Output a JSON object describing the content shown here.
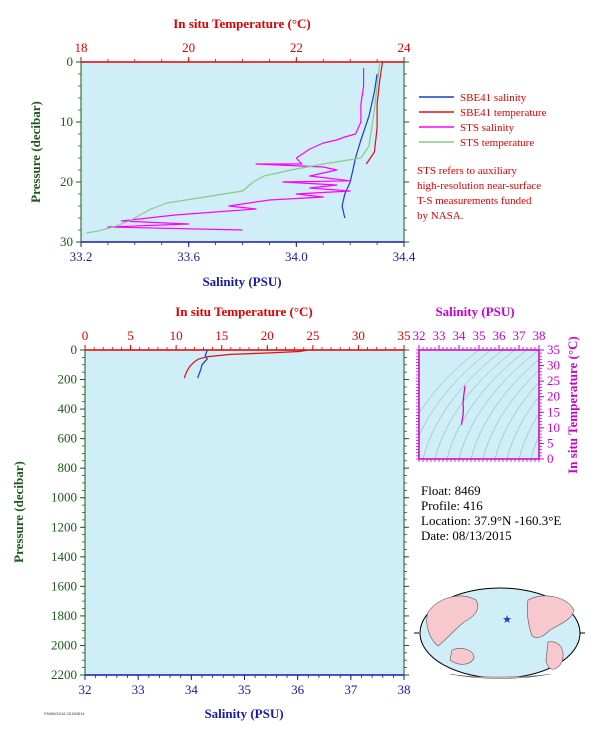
{
  "colors": {
    "plot_bg": "#cfeef7",
    "salinity_axis": "#1a1aa8",
    "temperature_axis": "#e00000",
    "pressure_axis": "#1d5a1d",
    "sbe_salinity": "#1a3cc8",
    "sbe_temperature": "#dd1111",
    "sts_salinity": "#ff00ff",
    "sts_temperature": "#88cc88",
    "ts_axis": "#cc00cc"
  },
  "legend": [
    {
      "label": "SBE41 salinity",
      "color": "#1a3cc8"
    },
    {
      "label": "SBE41 temperature",
      "color": "#dd1111"
    },
    {
      "label": "STS salinity",
      "color": "#ff00ff"
    },
    {
      "label": "STS temperature",
      "color": "#88cc88"
    }
  ],
  "note_lines": [
    "STS refers to auxiliary",
    "high-resolution near-surface",
    "T-S measurements funded",
    "by NASA."
  ],
  "info": {
    "float": "Float:  8469",
    "profile": "Profile:  416",
    "location": "Location:  37.9°N  -160.3°E",
    "date": "Date:  08/13/2015"
  },
  "footer_code": "F8469/Z416 20150814",
  "chart_data": [
    {
      "type": "line",
      "name": "near-surface profile",
      "top_axis_title": "In situ Temperature (°C)",
      "bottom_axis_title": "Salinity (PSU)",
      "left_axis_title": "Pressure (decibar)",
      "temperature_range": [
        18,
        24
      ],
      "temperature_ticks": [
        "18",
        "20",
        "22",
        "24"
      ],
      "salinity_range": [
        33.2,
        34.4
      ],
      "salinity_ticks": [
        "33.2",
        "33.6",
        "34.0",
        "34.4"
      ],
      "pressure_range": [
        0,
        30
      ],
      "pressure_ticks": [
        "0",
        "10",
        "20",
        "30"
      ],
      "series": [
        {
          "name": "SBE41 salinity",
          "x_axis": "salinity",
          "points": [
            [
              34.3,
              2
            ],
            [
              34.29,
              5
            ],
            [
              34.27,
              9
            ],
            [
              34.24,
              13
            ],
            [
              34.22,
              16
            ],
            [
              34.21,
              18
            ],
            [
              34.2,
              20
            ],
            [
              34.18,
              22
            ],
            [
              34.17,
              24
            ],
            [
              34.18,
              26
            ]
          ]
        },
        {
          "name": "SBE41 temperature",
          "x_axis": "temperature",
          "points": [
            [
              23.6,
              0
            ],
            [
              23.55,
              3
            ],
            [
              23.5,
              7
            ],
            [
              23.5,
              11
            ],
            [
              23.45,
              15
            ],
            [
              23.3,
              17
            ]
          ]
        },
        {
          "name": "STS salinity",
          "x_axis": "salinity",
          "points": [
            [
              34.25,
              1
            ],
            [
              34.25,
              4
            ],
            [
              34.24,
              7
            ],
            [
              34.24,
              10
            ],
            [
              34.23,
              11
            ],
            [
              34.22,
              12
            ],
            [
              34.18,
              12.5
            ],
            [
              34.15,
              13
            ],
            [
              34.1,
              13.5
            ],
            [
              34.05,
              14.5
            ],
            [
              34.0,
              16
            ],
            [
              34.02,
              17
            ],
            [
              33.85,
              17
            ],
            [
              34.1,
              17.5
            ],
            [
              34.15,
              18
            ],
            [
              34.05,
              19
            ],
            [
              34.2,
              19.8
            ],
            [
              33.95,
              20
            ],
            [
              34.15,
              20.5
            ],
            [
              34.05,
              21
            ],
            [
              34.2,
              21.5
            ],
            [
              34.0,
              22
            ],
            [
              34.1,
              22.5
            ],
            [
              33.9,
              23
            ],
            [
              33.75,
              24
            ],
            [
              33.85,
              24.5
            ],
            [
              33.7,
              25
            ],
            [
              33.55,
              25.5
            ],
            [
              33.35,
              26.5
            ],
            [
              33.6,
              27
            ],
            [
              33.3,
              27.5
            ],
            [
              33.8,
              28
            ]
          ]
        },
        {
          "name": "STS temperature",
          "x_axis": "temperature",
          "points": [
            [
              23.55,
              0
            ],
            [
              23.5,
              4
            ],
            [
              23.45,
              8
            ],
            [
              23.4,
              11
            ],
            [
              23.35,
              14
            ],
            [
              23.2,
              16
            ],
            [
              22.5,
              17
            ],
            [
              21.9,
              18
            ],
            [
              21.4,
              19
            ],
            [
              21.2,
              20
            ],
            [
              21.0,
              21.5
            ],
            [
              20.3,
              22.5
            ],
            [
              19.6,
              23.5
            ],
            [
              19.3,
              24.5
            ],
            [
              19.1,
              25.5
            ],
            [
              18.9,
              26.5
            ],
            [
              18.6,
              27.5
            ],
            [
              18.3,
              28.2
            ],
            [
              18.1,
              28.5
            ]
          ]
        }
      ]
    },
    {
      "type": "line",
      "name": "full profile",
      "top_axis_title": "In situ Temperature (°C)",
      "bottom_axis_title": "Salinity (PSU)",
      "left_axis_title": "Pressure (decibar)",
      "temperature_range": [
        0,
        35
      ],
      "temperature_ticks": [
        "0",
        "5",
        "10",
        "15",
        "20",
        "25",
        "30",
        "35"
      ],
      "salinity_range": [
        32,
        38
      ],
      "salinity_ticks": [
        "32",
        "33",
        "34",
        "35",
        "36",
        "37",
        "38"
      ],
      "pressure_range": [
        0,
        2200
      ],
      "pressure_ticks": [
        "0",
        "200",
        "400",
        "600",
        "800",
        "1000",
        "1200",
        "1400",
        "1600",
        "1800",
        "2000",
        "2200"
      ],
      "series": [
        {
          "name": "SBE41 salinity",
          "x_axis": "salinity",
          "points": [
            [
              34.3,
              0
            ],
            [
              34.28,
              20
            ],
            [
              34.26,
              40
            ],
            [
              34.3,
              60
            ],
            [
              34.25,
              80
            ],
            [
              34.2,
              100
            ],
            [
              34.18,
              130
            ],
            [
              34.15,
              160
            ],
            [
              34.12,
              190
            ]
          ]
        },
        {
          "name": "SBE41 temperature",
          "x_axis": "temperature",
          "points": [
            [
              24.5,
              0
            ],
            [
              23.5,
              10
            ],
            [
              20.0,
              20
            ],
            [
              16.0,
              30
            ],
            [
              13.5,
              45
            ],
            [
              12.5,
              60
            ],
            [
              12.0,
              80
            ],
            [
              11.5,
              110
            ],
            [
              11.2,
              140
            ],
            [
              11.0,
              170
            ],
            [
              10.9,
              190
            ]
          ]
        }
      ]
    },
    {
      "type": "line",
      "name": "T-S diagram",
      "top_axis_title": "Salinity (PSU)",
      "right_axis_title": "In situ Temperature (°C)",
      "salinity_range": [
        32,
        38
      ],
      "salinity_ticks": [
        "32",
        "33",
        "34",
        "35",
        "36",
        "37",
        "38"
      ],
      "temperature_range": [
        0,
        35
      ],
      "temperature_ticks": [
        "0",
        "5",
        "10",
        "15",
        "20",
        "25",
        "30",
        "35"
      ],
      "series": [
        {
          "name": "T-S curve",
          "points": [
            [
              34.3,
              23.5
            ],
            [
              34.25,
              21
            ],
            [
              34.2,
              18
            ],
            [
              34.22,
              16
            ],
            [
              34.2,
              14
            ],
            [
              34.15,
              12
            ],
            [
              34.12,
              11
            ]
          ]
        }
      ]
    }
  ]
}
